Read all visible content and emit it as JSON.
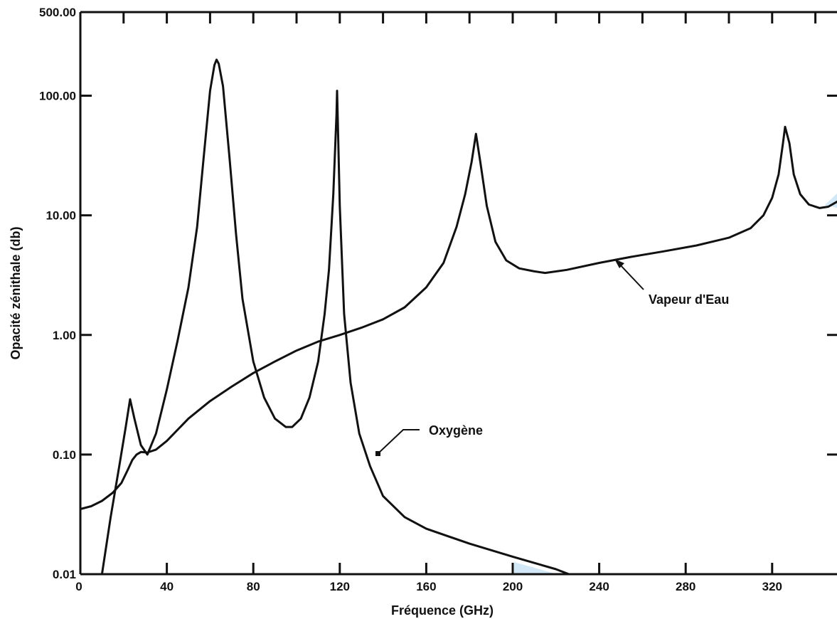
{
  "chart_data": {
    "type": "line",
    "title": "",
    "xlabel": "Fréquence (GHz)",
    "ylabel": "Opacité zénithale (db)",
    "xlim": [
      0,
      350
    ],
    "ylim": [
      0.01,
      500
    ],
    "y_scale": "log",
    "x_ticks": [
      {
        "value": 0,
        "label": "0"
      },
      {
        "value": 40,
        "label": "40"
      },
      {
        "value": 80,
        "label": "80"
      },
      {
        "value": 120,
        "label": "120"
      },
      {
        "value": 160,
        "label": "160"
      },
      {
        "value": 200,
        "label": "200"
      },
      {
        "value": 240,
        "label": "240"
      },
      {
        "value": 280,
        "label": "280"
      },
      {
        "value": 320,
        "label": "320"
      }
    ],
    "y_ticks": [
      {
        "value": 0.01,
        "label": "0.01"
      },
      {
        "value": 0.1,
        "label": "0.10"
      },
      {
        "value": 1,
        "label": "1.00"
      },
      {
        "value": 10,
        "label": "10.00"
      },
      {
        "value": 100,
        "label": "100.00"
      },
      {
        "value": 500,
        "label": "500.00"
      }
    ],
    "grid": false,
    "series": [
      {
        "name": "Oxygène",
        "color": "#111111",
        "points": [
          [
            10,
            0.01
          ],
          [
            14,
            0.03
          ],
          [
            18,
            0.08
          ],
          [
            21,
            0.17
          ],
          [
            23,
            0.29
          ],
          [
            25,
            0.2
          ],
          [
            28,
            0.12
          ],
          [
            31,
            0.1
          ],
          [
            35,
            0.15
          ],
          [
            40,
            0.35
          ],
          [
            45,
            0.9
          ],
          [
            50,
            2.5
          ],
          [
            54,
            8
          ],
          [
            57,
            30
          ],
          [
            60,
            110
          ],
          [
            62,
            180
          ],
          [
            63,
            200
          ],
          [
            64,
            185
          ],
          [
            66,
            120
          ],
          [
            69,
            30
          ],
          [
            72,
            7
          ],
          [
            75,
            2
          ],
          [
            80,
            0.6
          ],
          [
            85,
            0.3
          ],
          [
            90,
            0.2
          ],
          [
            95,
            0.17
          ],
          [
            98,
            0.17
          ],
          [
            102,
            0.2
          ],
          [
            106,
            0.3
          ],
          [
            110,
            0.6
          ],
          [
            113,
            1.5
          ],
          [
            115,
            3.5
          ],
          [
            117,
            15
          ],
          [
            118.5,
            70
          ],
          [
            118.75,
            110
          ],
          [
            119,
            70
          ],
          [
            120,
            12
          ],
          [
            122,
            1.5
          ],
          [
            125,
            0.4
          ],
          [
            129,
            0.15
          ],
          [
            134,
            0.08
          ],
          [
            140,
            0.045
          ],
          [
            150,
            0.03
          ],
          [
            160,
            0.024
          ],
          [
            180,
            0.018
          ],
          [
            200,
            0.014
          ],
          [
            220,
            0.011
          ],
          [
            226,
            0.01
          ]
        ]
      },
      {
        "name": "Vapeur d'Eau",
        "color": "#111111",
        "points": [
          [
            0,
            0.035
          ],
          [
            5,
            0.037
          ],
          [
            10,
            0.041
          ],
          [
            15,
            0.048
          ],
          [
            19,
            0.058
          ],
          [
            22,
            0.075
          ],
          [
            24,
            0.09
          ],
          [
            26,
            0.1
          ],
          [
            28,
            0.105
          ],
          [
            31,
            0.104
          ],
          [
            35,
            0.11
          ],
          [
            40,
            0.13
          ],
          [
            50,
            0.2
          ],
          [
            60,
            0.28
          ],
          [
            70,
            0.37
          ],
          [
            80,
            0.48
          ],
          [
            90,
            0.6
          ],
          [
            100,
            0.74
          ],
          [
            110,
            0.88
          ],
          [
            120,
            1.0
          ],
          [
            130,
            1.15
          ],
          [
            140,
            1.35
          ],
          [
            150,
            1.7
          ],
          [
            160,
            2.5
          ],
          [
            168,
            4.0
          ],
          [
            174,
            8.0
          ],
          [
            178,
            15
          ],
          [
            181,
            28
          ],
          [
            183,
            48
          ],
          [
            185,
            28
          ],
          [
            188,
            12
          ],
          [
            192,
            6
          ],
          [
            197,
            4.2
          ],
          [
            203,
            3.6
          ],
          [
            210,
            3.4
          ],
          [
            215,
            3.3
          ],
          [
            225,
            3.5
          ],
          [
            240,
            4.0
          ],
          [
            255,
            4.5
          ],
          [
            270,
            5.0
          ],
          [
            285,
            5.6
          ],
          [
            300,
            6.5
          ],
          [
            310,
            7.8
          ],
          [
            316,
            10
          ],
          [
            320,
            14
          ],
          [
            323,
            22
          ],
          [
            325,
            40
          ],
          [
            326,
            55
          ],
          [
            328,
            40
          ],
          [
            330,
            22
          ],
          [
            333,
            15
          ],
          [
            337,
            12.3
          ],
          [
            342,
            11.5
          ],
          [
            346,
            11.8
          ],
          [
            350,
            13
          ]
        ]
      }
    ],
    "annotations": [
      {
        "text": "Oxygène",
        "x": 133,
        "y": 0.09
      },
      {
        "text": "Vapeur d'Eau",
        "x": 246,
        "y": 4.1
      }
    ]
  }
}
